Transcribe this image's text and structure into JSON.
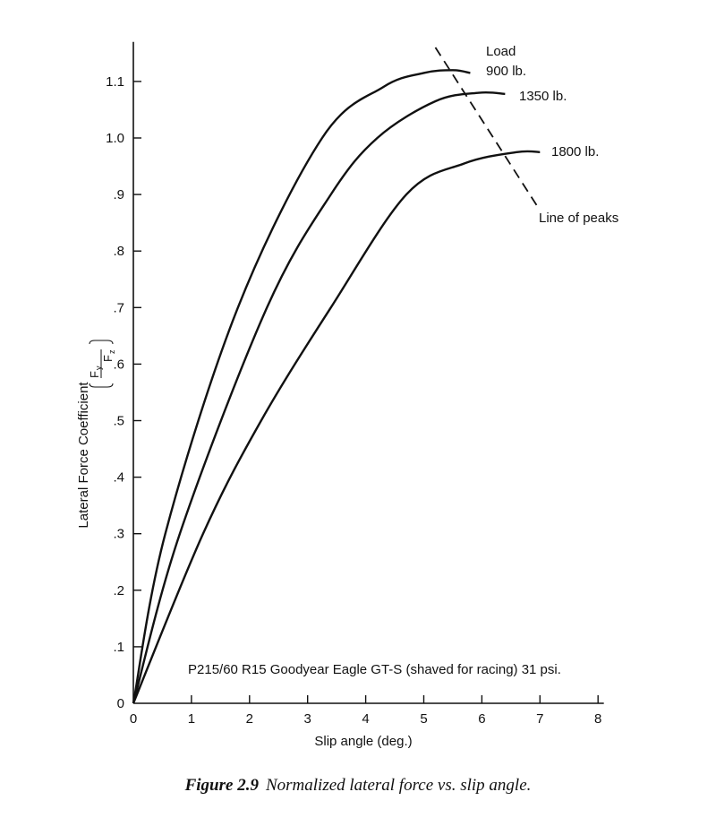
{
  "chart_data": {
    "type": "line",
    "xlabel": "Slip angle (deg.)",
    "ylabel": "Lateral Force Coefficient",
    "ylabel_fraction": {
      "numerator": "F",
      "numerator_sub": "y",
      "denominator": "F",
      "denominator_sub": "z"
    },
    "xlim": [
      0,
      8
    ],
    "ylim": [
      0,
      1.1
    ],
    "x_ticks": [
      "0",
      "1",
      "2",
      "3",
      "4",
      "5",
      "6",
      "7",
      "8"
    ],
    "y_ticks": [
      "0",
      ".1",
      ".2",
      ".3",
      ".4",
      ".5",
      ".6",
      ".7",
      ".8",
      ".9",
      "1.0",
      "1.1"
    ],
    "y_tick_values": [
      0,
      0.1,
      0.2,
      0.3,
      0.4,
      0.5,
      0.6,
      0.7,
      0.8,
      0.9,
      1.0,
      1.1
    ],
    "grid": false,
    "annotation": "P215/60 R15 Goodyear Eagle GT-S (shaved for racing) 31 psi.",
    "legend_title": "Load",
    "series": [
      {
        "name": "900 lb.",
        "x": [
          0,
          0.55,
          1.8,
          3.25,
          4.3,
          5.0,
          5.5,
          5.8
        ],
        "y": [
          0,
          0.3,
          0.7,
          1.0,
          1.09,
          1.115,
          1.12,
          1.115
        ]
      },
      {
        "name": "1350 lb.",
        "x": [
          0,
          0.8,
          2.3,
          3.4,
          4.2,
          5.2,
          5.95,
          6.4
        ],
        "y": [
          0,
          0.3,
          0.7,
          0.9,
          1.0,
          1.065,
          1.08,
          1.078
        ]
      },
      {
        "name": "1800 lb.",
        "x": [
          0,
          1.2,
          2.2,
          3.4,
          4.7,
          5.7,
          6.6,
          7.0
        ],
        "y": [
          0,
          0.3,
          0.5,
          0.7,
          0.9,
          0.955,
          0.975,
          0.975
        ]
      }
    ],
    "line_of_peaks": {
      "label": "Line of peaks",
      "x": [
        5.2,
        6.95
      ],
      "y": [
        1.16,
        0.88
      ]
    }
  },
  "caption": {
    "label": "Figure 2.9",
    "text": "Normalized lateral force vs. slip angle."
  }
}
